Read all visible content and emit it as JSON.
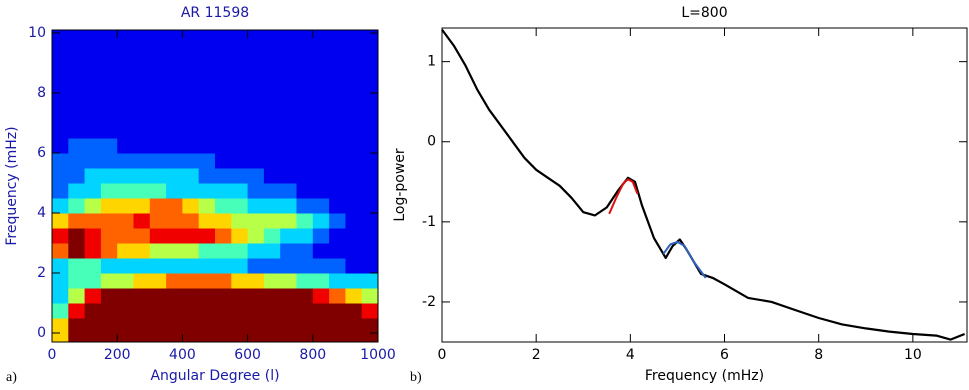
{
  "chart_data": [
    {
      "type": "heatmap",
      "panel_label": "a)",
      "title": "AR 11598",
      "xlabel": "Angular Degree (l)",
      "ylabel": "Frequency (mHz)",
      "xlim": [
        0,
        1000
      ],
      "ylim": [
        -0.3,
        10.1
      ],
      "xticks": [
        0,
        200,
        400,
        600,
        800,
        1000
      ],
      "yticks": [
        0,
        2,
        4,
        6,
        8,
        10
      ],
      "zlim": [
        0,
        9
      ],
      "x_bins": [
        0,
        50,
        100,
        150,
        200,
        250,
        300,
        350,
        400,
        450,
        500,
        550,
        600,
        650,
        700,
        750,
        800,
        850,
        900,
        950,
        1000
      ],
      "y_bins": [
        -0.3,
        0.5,
        1,
        1.5,
        2,
        2.5,
        3,
        3.5,
        4,
        4.5,
        5,
        5.5,
        6,
        6.5,
        7,
        7.5,
        8,
        8.5,
        9,
        9.5,
        10.1
      ],
      "z": [
        [
          6,
          9,
          9,
          9,
          9,
          9,
          9,
          9,
          9,
          9,
          9,
          9,
          9,
          9,
          9,
          9,
          9,
          9,
          9,
          9
        ],
        [
          4,
          8,
          9,
          9,
          9,
          9,
          9,
          9,
          9,
          9,
          9,
          9,
          9,
          9,
          9,
          9,
          9,
          9,
          9,
          8
        ],
        [
          3,
          5,
          8,
          9,
          9,
          9,
          9,
          9,
          9,
          9,
          9,
          9,
          9,
          9,
          9,
          9,
          8,
          7,
          6,
          5
        ],
        [
          3,
          4,
          4,
          5,
          5,
          6,
          6,
          7,
          7,
          7,
          7,
          6,
          6,
          5,
          5,
          4,
          4,
          3,
          3,
          3
        ],
        [
          3,
          4,
          4,
          3,
          3,
          3,
          3,
          3,
          3,
          3,
          3,
          3,
          2,
          2,
          2,
          2,
          2,
          2,
          1,
          1
        ],
        [
          7,
          9,
          8,
          7,
          6,
          6,
          5,
          5,
          5,
          4,
          4,
          4,
          3,
          3,
          2,
          2,
          1,
          1,
          1,
          1
        ],
        [
          8,
          9,
          8,
          7,
          7,
          7,
          8,
          8,
          8,
          8,
          7,
          6,
          5,
          4,
          3,
          3,
          2,
          1,
          1,
          1
        ],
        [
          6,
          7,
          7,
          7,
          7,
          8,
          7,
          7,
          7,
          6,
          6,
          5,
          5,
          5,
          5,
          4,
          3,
          2,
          1,
          1
        ],
        [
          3,
          4,
          5,
          6,
          6,
          6,
          7,
          7,
          6,
          5,
          4,
          4,
          3,
          3,
          3,
          2,
          2,
          1,
          1,
          1
        ],
        [
          2,
          3,
          3,
          4,
          4,
          4,
          4,
          3,
          3,
          3,
          3,
          3,
          2,
          2,
          2,
          1,
          1,
          1,
          1,
          1
        ],
        [
          2,
          2,
          3,
          3,
          3,
          3,
          3,
          3,
          3,
          2,
          2,
          2,
          2,
          1,
          1,
          1,
          1,
          1,
          1,
          1
        ],
        [
          2,
          2,
          2,
          2,
          2,
          2,
          2,
          2,
          2,
          2,
          1,
          1,
          1,
          1,
          1,
          1,
          1,
          1,
          1,
          1
        ],
        [
          1,
          2,
          2,
          2,
          1,
          1,
          1,
          1,
          1,
          1,
          1,
          1,
          1,
          1,
          1,
          1,
          1,
          1,
          1,
          1
        ],
        [
          1,
          1,
          1,
          1,
          1,
          1,
          1,
          1,
          1,
          1,
          1,
          1,
          1,
          1,
          1,
          1,
          1,
          1,
          1,
          1
        ],
        [
          1,
          1,
          1,
          1,
          1,
          1,
          1,
          1,
          1,
          1,
          1,
          1,
          1,
          1,
          1,
          1,
          1,
          1,
          1,
          1
        ],
        [
          1,
          1,
          1,
          1,
          1,
          1,
          1,
          1,
          1,
          1,
          1,
          1,
          1,
          1,
          1,
          1,
          1,
          1,
          1,
          1
        ],
        [
          1,
          1,
          1,
          1,
          1,
          1,
          1,
          1,
          1,
          1,
          1,
          1,
          1,
          1,
          1,
          1,
          1,
          1,
          1,
          1
        ],
        [
          1,
          1,
          1,
          1,
          1,
          1,
          1,
          1,
          1,
          1,
          1,
          1,
          1,
          1,
          1,
          1,
          1,
          1,
          1,
          1
        ],
        [
          1,
          1,
          1,
          1,
          1,
          1,
          1,
          1,
          1,
          1,
          1,
          1,
          1,
          1,
          1,
          1,
          1,
          1,
          1,
          1
        ],
        [
          1,
          1,
          1,
          1,
          1,
          1,
          1,
          1,
          1,
          1,
          1,
          1,
          1,
          1,
          1,
          1,
          1,
          1,
          1,
          1
        ]
      ]
    },
    {
      "type": "line",
      "panel_label": "b)",
      "title": "L=800",
      "xlabel": "Frequency (mHz)",
      "ylabel": "Log-power",
      "xlim": [
        0,
        11.15
      ],
      "ylim": [
        -2.5,
        1.42
      ],
      "xticks": [
        0,
        2,
        4,
        6,
        8,
        10
      ],
      "yticks": [
        -2,
        -1,
        0,
        1
      ],
      "series": [
        {
          "color": "#000000",
          "x": [
            0,
            0.25,
            0.5,
            0.75,
            1,
            1.25,
            1.5,
            1.75,
            2,
            2.25,
            2.5,
            2.75,
            3,
            3.25,
            3.5,
            3.75,
            3.95,
            4.1,
            4.25,
            4.5,
            4.75,
            4.9,
            5.05,
            5.2,
            5.5,
            5.75,
            6,
            6.5,
            7,
            7.5,
            8,
            8.5,
            9,
            9.5,
            10,
            10.5,
            10.8,
            11.1
          ],
          "values": [
            1.4,
            1.2,
            0.95,
            0.65,
            0.4,
            0.2,
            0,
            -0.2,
            -0.35,
            -0.45,
            -0.55,
            -0.7,
            -0.88,
            -0.92,
            -0.82,
            -0.6,
            -0.45,
            -0.5,
            -0.8,
            -1.2,
            -1.45,
            -1.3,
            -1.22,
            -1.35,
            -1.65,
            -1.7,
            -1.78,
            -1.95,
            -2,
            -2.1,
            -2.2,
            -2.28,
            -2.33,
            -2.37,
            -2.4,
            -2.42,
            -2.47,
            -2.4
          ]
        },
        {
          "color": "#e01010",
          "x": [
            3.55,
            3.7,
            3.85,
            3.95,
            4.05,
            4.15
          ],
          "values": [
            -0.9,
            -0.7,
            -0.52,
            -0.47,
            -0.5,
            -0.65
          ]
        },
        {
          "color": "#3060c0",
          "x": [
            4.7,
            4.85,
            5,
            5.15,
            5.35,
            5.6
          ],
          "values": [
            -1.4,
            -1.28,
            -1.25,
            -1.3,
            -1.5,
            -1.7
          ]
        }
      ]
    }
  ]
}
